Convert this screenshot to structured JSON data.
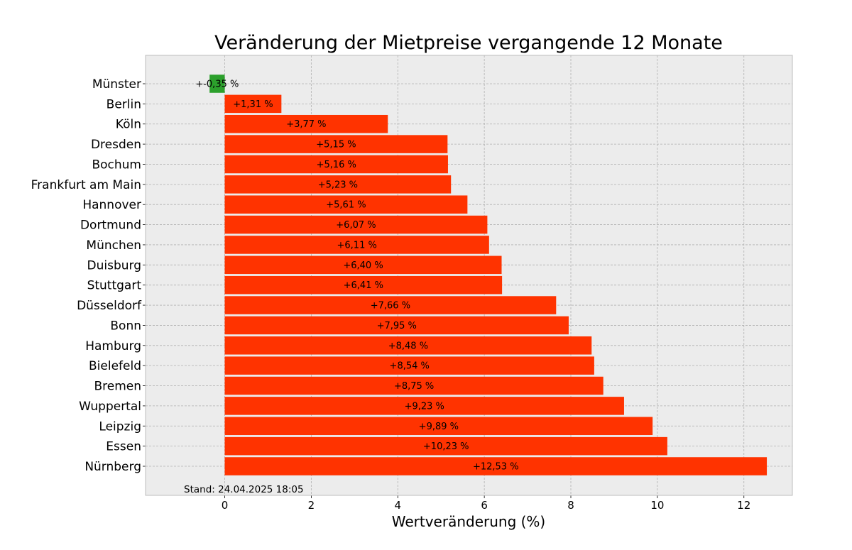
{
  "chart_data": {
    "type": "bar",
    "orientation": "horizontal",
    "title": "Veränderung der Mietpreise vergangende 12 Monate",
    "xlabel": "Wertveränderung (%)",
    "ylabel": "",
    "xlim": [
      -1.83,
      13.12
    ],
    "xticks": [
      0,
      2,
      4,
      6,
      8,
      10,
      12
    ],
    "grid": true,
    "categories": [
      "Münster",
      "Berlin",
      "Köln",
      "Dresden",
      "Bochum",
      "Frankfurt am Main",
      "Hannover",
      "Dortmund",
      "München",
      "Duisburg",
      "Stuttgart",
      "Düsseldorf",
      "Bonn",
      "Hamburg",
      "Bielefeld",
      "Bremen",
      "Wuppertal",
      "Leipzig",
      "Essen",
      "Nürnberg"
    ],
    "values": [
      -0.35,
      1.31,
      3.77,
      5.15,
      5.16,
      5.23,
      5.61,
      6.07,
      6.11,
      6.4,
      6.41,
      7.66,
      7.95,
      8.48,
      8.54,
      8.75,
      9.23,
      9.89,
      10.23,
      12.53
    ],
    "data_labels": [
      "+-0,35 %",
      "+1,31 %",
      "+3,77 %",
      "+5,15 %",
      "+5,16 %",
      "+5,23 %",
      "+5,61 %",
      "+6,07 %",
      "+6,11 %",
      "+6,40 %",
      "+6,41 %",
      "+7,66 %",
      "+7,95 %",
      "+8,48 %",
      "+8,54 %",
      "+8,75 %",
      "+9,23 %",
      "+9,89 %",
      "+10,23 %",
      "+12,53 %"
    ],
    "colors": {
      "positive": "#ff3300",
      "negative": "#2ca02c",
      "plot_background": "#ececec",
      "grid": "#b0b0b0",
      "frame": "#bdbdbd"
    },
    "annotation": "Stand: 24.04.2025 18:05"
  }
}
